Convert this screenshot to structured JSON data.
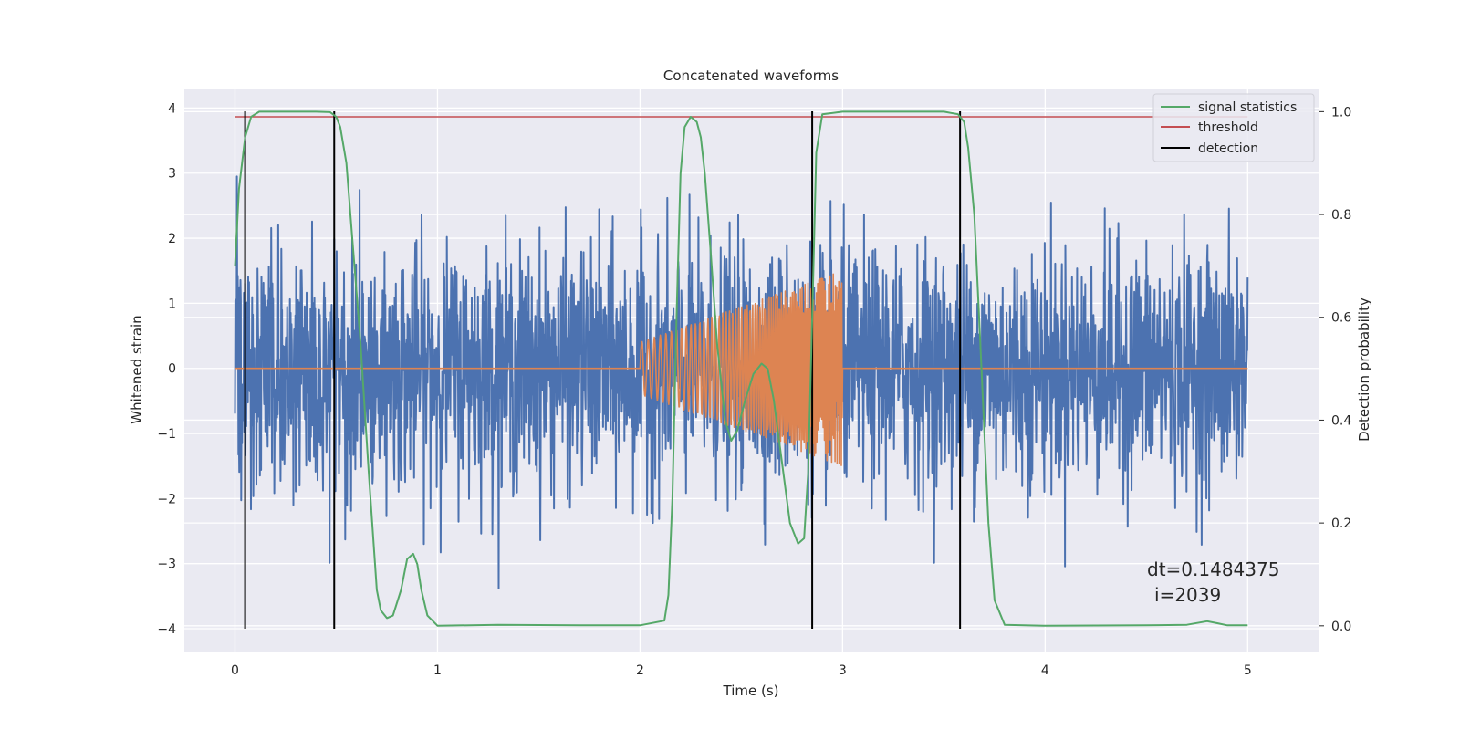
{
  "chart_data": {
    "type": "line",
    "title": "Concatenated waveforms",
    "xlabel": "Time (s)",
    "ylabel": "Whitened strain",
    "ylabel_right": "Detection probability",
    "xlim": [
      -0.25,
      5.35
    ],
    "ylim": [
      -4.35,
      4.3
    ],
    "ylim_right": [
      -0.05,
      1.045
    ],
    "x_ticks": [
      0,
      1,
      2,
      3,
      4,
      5
    ],
    "y_ticks": [
      -4,
      -3,
      -2,
      -1,
      0,
      1,
      2,
      3,
      4
    ],
    "y_right_ticks": [
      0.0,
      0.2,
      0.4,
      0.6,
      0.8,
      1.0
    ],
    "x_tick_labels": [
      "0",
      "1",
      "2",
      "3",
      "4",
      "5"
    ],
    "y_tick_labels": [
      "−4",
      "−3",
      "−2",
      "−1",
      "0",
      "1",
      "2",
      "3",
      "4"
    ],
    "y_right_tick_labels": [
      "0.0",
      "0.2",
      "0.4",
      "0.6",
      "0.8",
      "1.0"
    ],
    "grid": true,
    "legend_position": "top-right",
    "colors": {
      "background": "#eaeaf2",
      "noise": "#4c72b0",
      "injection": "#dd8452",
      "statistics": "#55a868",
      "threshold": "#c44e52",
      "detection": "#000000"
    },
    "series": [
      {
        "name": "signal statistics",
        "axis": "right",
        "x": [
          0.0,
          0.02,
          0.05,
          0.08,
          0.12,
          0.2,
          0.3,
          0.4,
          0.47,
          0.5,
          0.52,
          0.55,
          0.58,
          0.62,
          0.66,
          0.7,
          0.72,
          0.75,
          0.78,
          0.82,
          0.85,
          0.88,
          0.9,
          0.92,
          0.95,
          1.0,
          1.3,
          1.7,
          2.0,
          2.12,
          2.14,
          2.16,
          2.18,
          2.2,
          2.22,
          2.25,
          2.28,
          2.3,
          2.32,
          2.35,
          2.38,
          2.42,
          2.45,
          2.48,
          2.52,
          2.56,
          2.6,
          2.63,
          2.66,
          2.7,
          2.74,
          2.78,
          2.81,
          2.83,
          2.85,
          2.87,
          2.9,
          3.0,
          3.3,
          3.5,
          3.57,
          3.6,
          3.62,
          3.65,
          3.68,
          3.72,
          3.75,
          3.8,
          4.0,
          4.5,
          4.7,
          4.8,
          4.85,
          4.9,
          5.0
        ],
        "values": [
          0.7,
          0.85,
          0.95,
          0.99,
          1.0,
          1.0,
          1.0,
          1.0,
          0.999,
          0.99,
          0.97,
          0.9,
          0.75,
          0.55,
          0.3,
          0.07,
          0.03,
          0.015,
          0.02,
          0.07,
          0.13,
          0.14,
          0.12,
          0.07,
          0.02,
          0.0,
          0.002,
          0.001,
          0.001,
          0.01,
          0.06,
          0.25,
          0.6,
          0.88,
          0.97,
          0.99,
          0.98,
          0.95,
          0.88,
          0.72,
          0.55,
          0.4,
          0.36,
          0.38,
          0.44,
          0.49,
          0.51,
          0.5,
          0.44,
          0.32,
          0.2,
          0.16,
          0.17,
          0.3,
          0.6,
          0.92,
          0.995,
          1.0,
          1.0,
          1.0,
          0.995,
          0.98,
          0.93,
          0.8,
          0.55,
          0.2,
          0.05,
          0.002,
          0.0,
          0.001,
          0.002,
          0.009,
          0.005,
          0.001,
          0.001
        ]
      },
      {
        "name": "threshold",
        "axis": "right",
        "x": [
          0.0,
          5.0
        ],
        "values": [
          0.99,
          0.99
        ]
      },
      {
        "name": "detection",
        "axis": "left",
        "x": [
          0.05,
          0.49,
          2.85,
          3.58
        ],
        "y_range": [
          -4.0,
          3.95
        ]
      },
      {
        "name": "",
        "axis": "left",
        "kind": "whitened noise",
        "x_range": [
          0.0,
          5.0
        ],
        "typical_abs_amplitude": 0.9,
        "max_value": 3.7,
        "min_value": -4.0
      },
      {
        "name": "",
        "axis": "left",
        "kind": "chirp injection",
        "x_range": [
          2.0,
          3.0
        ],
        "amplitude_start": 0.4,
        "amplitude_end": 1.5
      }
    ],
    "annotations": [
      "dt=0.1484375",
      "i=2039"
    ]
  }
}
